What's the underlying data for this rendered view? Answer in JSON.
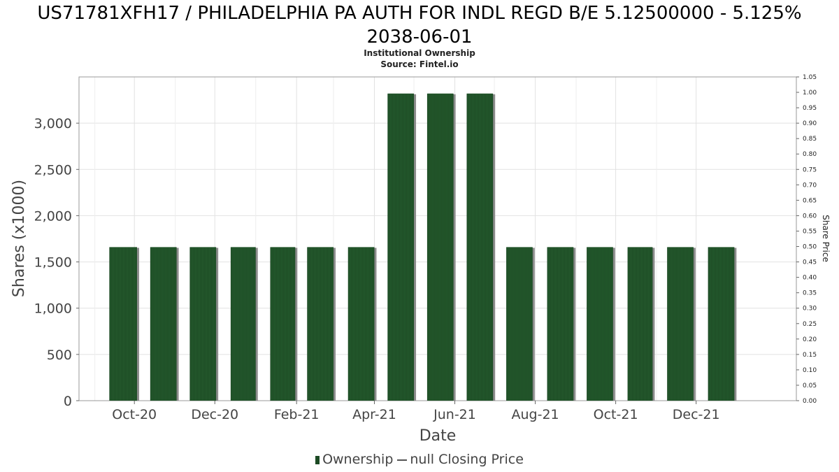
{
  "title_line1": "US71781XFH17 / PHILADELPHIA PA AUTH FOR INDL REGD B/E 5.12500000 - 5.125%",
  "title_line2": "2038-06-01",
  "subtitle_line1": "Institutional Ownership",
  "subtitle_line2": "Source: Fintel.io",
  "legend": {
    "series1": "Ownership",
    "series2": "null Closing Price"
  },
  "colors": {
    "bar": "#1c4a24",
    "bar_shadow": "#8c8c8c",
    "grid": "#e2e2e2",
    "frame": "#999999"
  },
  "chart_data": {
    "type": "bar",
    "title": "US71781XFH17 / PHILADELPHIA PA AUTH FOR INDL REGD B/E 5.12500000 - 5.125% 2038-06-01",
    "xlabel": "Date",
    "ylabel": "Shares (x1000)",
    "y2label": "Share Price",
    "ylim": [
      0,
      3500
    ],
    "y2lim": [
      0,
      1.05
    ],
    "x_range": [
      "2020-08-20",
      "2022-02-15"
    ],
    "y_ticks": [
      0,
      500,
      1000,
      1500,
      2000,
      2500,
      3000
    ],
    "y_tick_labels": [
      "0",
      "500",
      "1,000",
      "1,500",
      "2,000",
      "2,500",
      "3,000"
    ],
    "y2_ticks": [
      0,
      0.05,
      0.1,
      0.15,
      0.2,
      0.25,
      0.3,
      0.35,
      0.4,
      0.45,
      0.5,
      0.55,
      0.6,
      0.65,
      0.7,
      0.75,
      0.8,
      0.85,
      0.9,
      0.95,
      1.0,
      1.05
    ],
    "y2_tick_labels": [
      "0.00",
      "0.05",
      "0.10",
      "0.15",
      "0.20",
      "0.25",
      "0.30",
      "0.35",
      "0.40",
      "0.45",
      "0.50",
      "0.55",
      "0.60",
      "0.65",
      "0.70",
      "0.75",
      "0.80",
      "0.85",
      "0.90",
      "0.95",
      "1.00",
      "1.05"
    ],
    "x_ticks": [
      {
        "label": "Oct-20",
        "date": "2020-10-01"
      },
      {
        "label": "Dec-20",
        "date": "2020-12-01"
      },
      {
        "label": "Feb-21",
        "date": "2021-02-01"
      },
      {
        "label": "Apr-21",
        "date": "2021-04-01"
      },
      {
        "label": "Jun-21",
        "date": "2021-06-01"
      },
      {
        "label": "Aug-21",
        "date": "2021-08-01"
      },
      {
        "label": "Oct-21",
        "date": "2021-10-01"
      },
      {
        "label": "Dec-21",
        "date": "2021-12-01"
      }
    ],
    "bars": [
      {
        "start": "2020-09-12",
        "end": "2020-10-03",
        "value": 1660
      },
      {
        "start": "2020-10-13",
        "end": "2020-11-02",
        "value": 1660
      },
      {
        "start": "2020-11-12",
        "end": "2020-12-02",
        "value": 1660
      },
      {
        "start": "2020-12-13",
        "end": "2021-01-01",
        "value": 1660
      },
      {
        "start": "2021-01-12",
        "end": "2021-01-31",
        "value": 1660
      },
      {
        "start": "2021-02-09",
        "end": "2021-03-01",
        "value": 1660
      },
      {
        "start": "2021-03-12",
        "end": "2021-04-01",
        "value": 1660
      },
      {
        "start": "2021-04-11",
        "end": "2021-05-01",
        "value": 3320
      },
      {
        "start": "2021-05-11",
        "end": "2021-05-31",
        "value": 3320
      },
      {
        "start": "2021-06-10",
        "end": "2021-06-30",
        "value": 3320
      },
      {
        "start": "2021-07-10",
        "end": "2021-07-30",
        "value": 1660
      },
      {
        "start": "2021-08-10",
        "end": "2021-08-30",
        "value": 1660
      },
      {
        "start": "2021-09-09",
        "end": "2021-09-29",
        "value": 1660
      },
      {
        "start": "2021-10-10",
        "end": "2021-10-29",
        "value": 1660
      },
      {
        "start": "2021-11-09",
        "end": "2021-11-29",
        "value": 1660
      },
      {
        "start": "2021-12-10",
        "end": "2021-12-30",
        "value": 1660
      }
    ],
    "grid": true,
    "legend_position": "bottom"
  }
}
